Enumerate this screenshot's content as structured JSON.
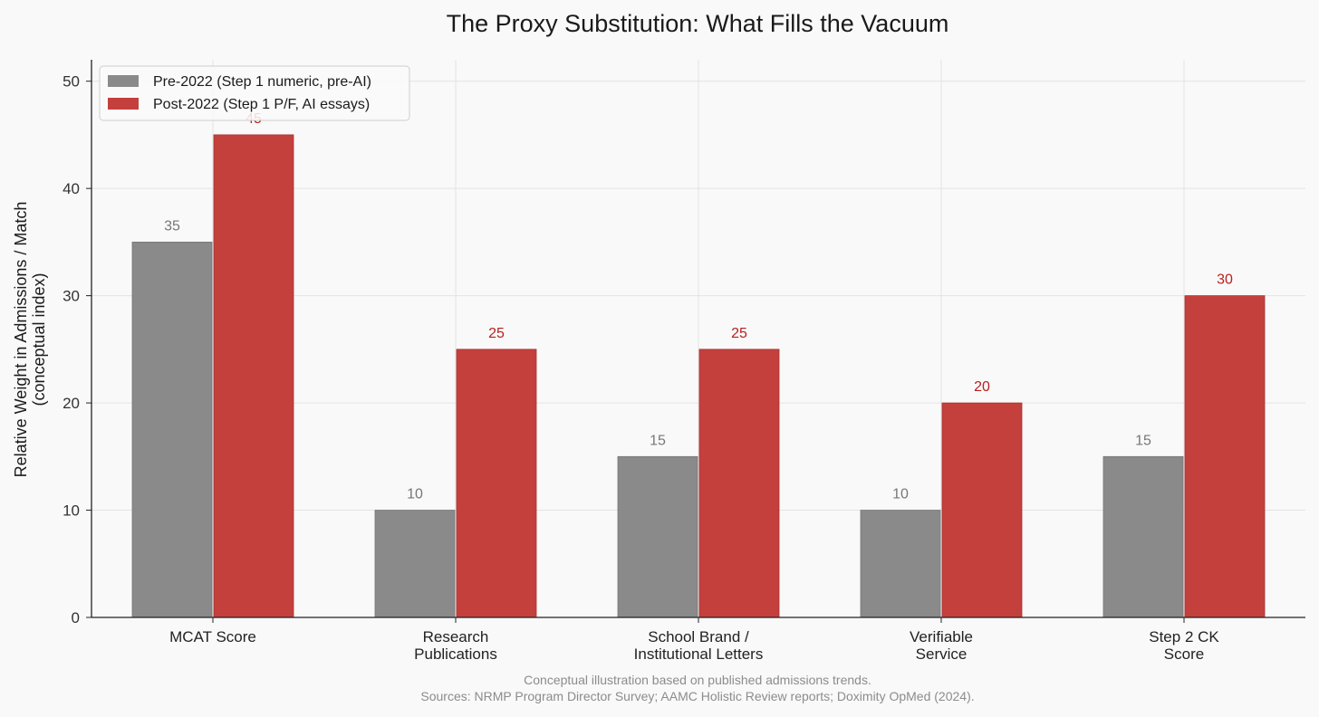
{
  "chart_data": {
    "type": "bar",
    "title": "The Proxy Substitution: What Fills the Vacuum",
    "ylabel_lines": [
      "Relative Weight in Admissions / Match",
      "(conceptual index)"
    ],
    "xlabel": "",
    "categories": [
      [
        "MCAT Score"
      ],
      [
        "Research",
        "Publications"
      ],
      [
        "School Brand /",
        "Institutional Letters"
      ],
      [
        "Verifiable",
        "Service"
      ],
      [
        "Step 2 CK",
        "Score"
      ]
    ],
    "series": [
      {
        "name": "Pre-2022 (Step 1 numeric, pre-AI)",
        "values": [
          35,
          10,
          15,
          10,
          15
        ],
        "color": "#8a8a8a",
        "label_color": "#777777"
      },
      {
        "name": "Post-2022 (Step 1 P/F, AI essays)",
        "values": [
          45,
          25,
          25,
          20,
          30
        ],
        "color": "#c4403d",
        "label_color": "#b8201e"
      }
    ],
    "ylim": [
      0,
      52
    ],
    "yticks": [
      0,
      10,
      20,
      30,
      40,
      50
    ],
    "grid": true,
    "legend_position": "top-left",
    "footnote_lines": [
      "Conceptual illustration based on published admissions trends.",
      "Sources: NRMP Program Director Survey; AAMC Holistic Review reports; Doximity OpMed (2024)."
    ]
  }
}
